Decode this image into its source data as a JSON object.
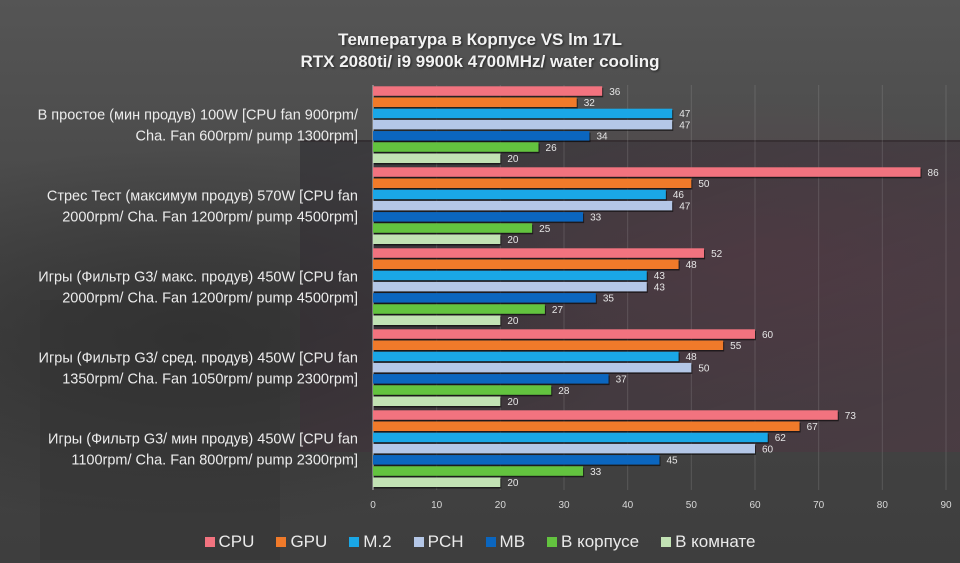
{
  "chart_data": {
    "type": "bar",
    "orientation": "horizontal",
    "title": "Температура в Корпусе VS lm 17L",
    "subtitle": "RTX 2080ti/ i9 9900k 4700MHz/ water cooling",
    "xlabel": "",
    "ylabel": "",
    "xlim": [
      0,
      90
    ],
    "x_ticks": [
      0,
      10,
      20,
      30,
      40,
      50,
      60,
      70,
      80,
      90
    ],
    "grid": true,
    "legend_position": "bottom",
    "categories": [
      {
        "line1": "В простое (мин продув) 100W [CPU fan 900rpm/",
        "line2": "Cha. Fan  600rpm/ pump 1300rpm]"
      },
      {
        "line1": "Стрес Тест (максимум продув) 570W [CPU fan",
        "line2": "2000rpm/ Cha. Fan  1200rpm/ pump 4500rpm]"
      },
      {
        "line1": "Игры (Фильтр G3/ макс. продув) 450W  [CPU fan",
        "line2": "2000rpm/ Cha. Fan  1200rpm/ pump 4500rpm]"
      },
      {
        "line1": "Игры (Фильтр G3/ сред. продув) 450W  [CPU fan",
        "line2": "1350rpm/ Cha. Fan  1050rpm/ pump 2300rpm]"
      },
      {
        "line1": "Игры    (Фильтр G3/ мин продув) 450W [CPU fan",
        "line2": "1100rpm/ Cha. Fan  800rpm/ pump 2300rpm]"
      }
    ],
    "series": [
      {
        "name": "CPU",
        "color": "#f2737f",
        "values": [
          36,
          86,
          52,
          60,
          73
        ]
      },
      {
        "name": "GPU",
        "color": "#f07a2a",
        "values": [
          32,
          50,
          48,
          55,
          67
        ]
      },
      {
        "name": "M.2",
        "color": "#1aa7e6",
        "values": [
          47,
          46,
          43,
          48,
          62
        ]
      },
      {
        "name": "PCH",
        "color": "#b4c7e7",
        "values": [
          47,
          47,
          43,
          50,
          60
        ]
      },
      {
        "name": "MB",
        "color": "#0b66bf",
        "values": [
          34,
          33,
          35,
          37,
          45
        ]
      },
      {
        "name": "В корпусе",
        "color": "#63c33f",
        "values": [
          26,
          25,
          27,
          28,
          33
        ]
      },
      {
        "name": "В комнате",
        "color": "#c2e2b4",
        "values": [
          20,
          20,
          20,
          20,
          20
        ]
      }
    ]
  }
}
